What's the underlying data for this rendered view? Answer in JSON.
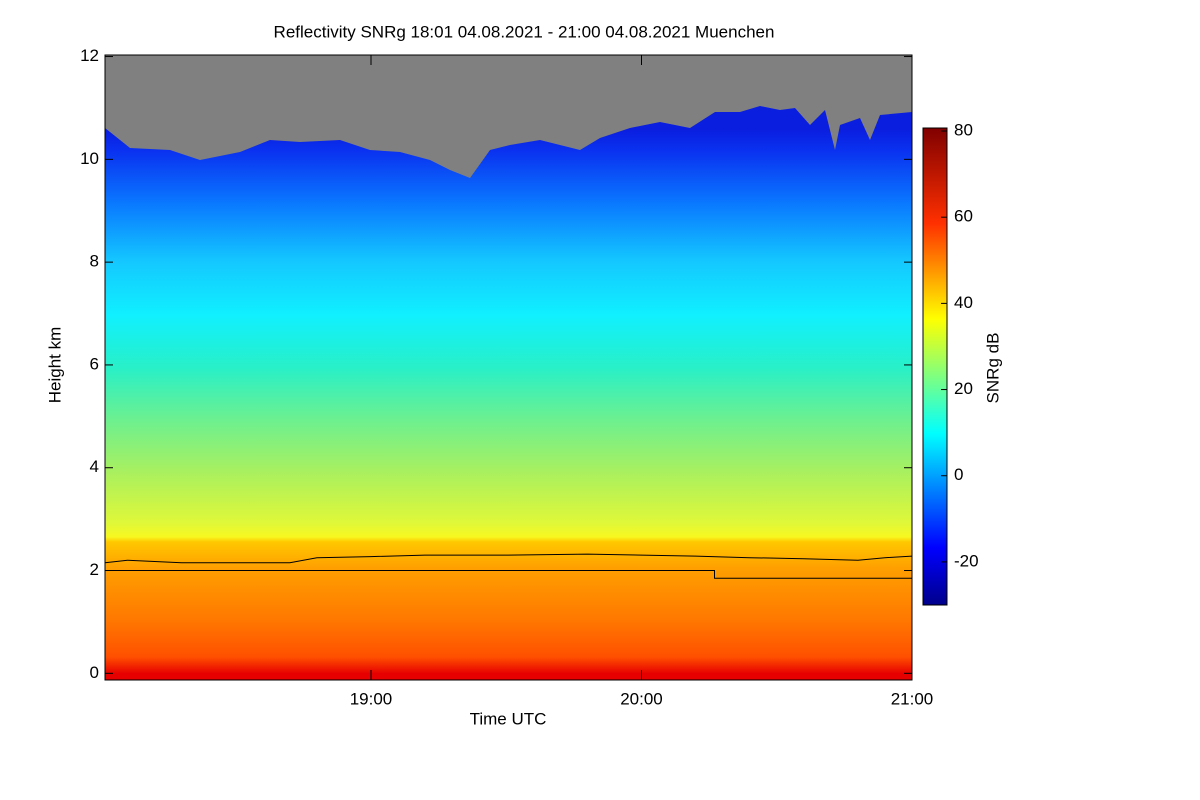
{
  "chart_data": {
    "type": "heatmap",
    "title": "Reflectivity SNRg   18:01 04.08.2021 - 21:00 04.08.2021 Muenchen",
    "x_label": "Time UTC",
    "y_label": "Height km",
    "colorbar_label": "SNRg dB",
    "xlim": [
      18.0167,
      21.0
    ],
    "xticks": [
      {
        "value": 19,
        "label": "19:00"
      },
      {
        "value": 20,
        "label": "20:00"
      },
      {
        "value": 21,
        "label": "21:00"
      }
    ],
    "ylim": [
      -0.13,
      12.03
    ],
    "yticks": [
      0,
      2,
      4,
      6,
      8,
      10,
      12
    ],
    "clim": [
      -30,
      80.7
    ],
    "cticks": [
      -20,
      0,
      20,
      40,
      60,
      80
    ],
    "lines": [
      {
        "color": "#000000",
        "x": [
          18.0167,
          18.1,
          18.3,
          18.7,
          18.8,
          19.0,
          19.2,
          19.5,
          19.8,
          20.0,
          20.2,
          20.4,
          20.6,
          20.8,
          20.9,
          21.0
        ],
        "values": [
          2.15,
          2.2,
          2.15,
          2.15,
          2.25,
          2.27,
          2.3,
          2.3,
          2.32,
          2.3,
          2.28,
          2.25,
          2.23,
          2.2,
          2.25,
          2.28
        ]
      },
      {
        "color": "#000000",
        "x": [
          18.0167,
          20.27,
          20.27,
          21.0
        ],
        "values": [
          2.0,
          2.0,
          1.85,
          1.85
        ]
      }
    ]
  }
}
